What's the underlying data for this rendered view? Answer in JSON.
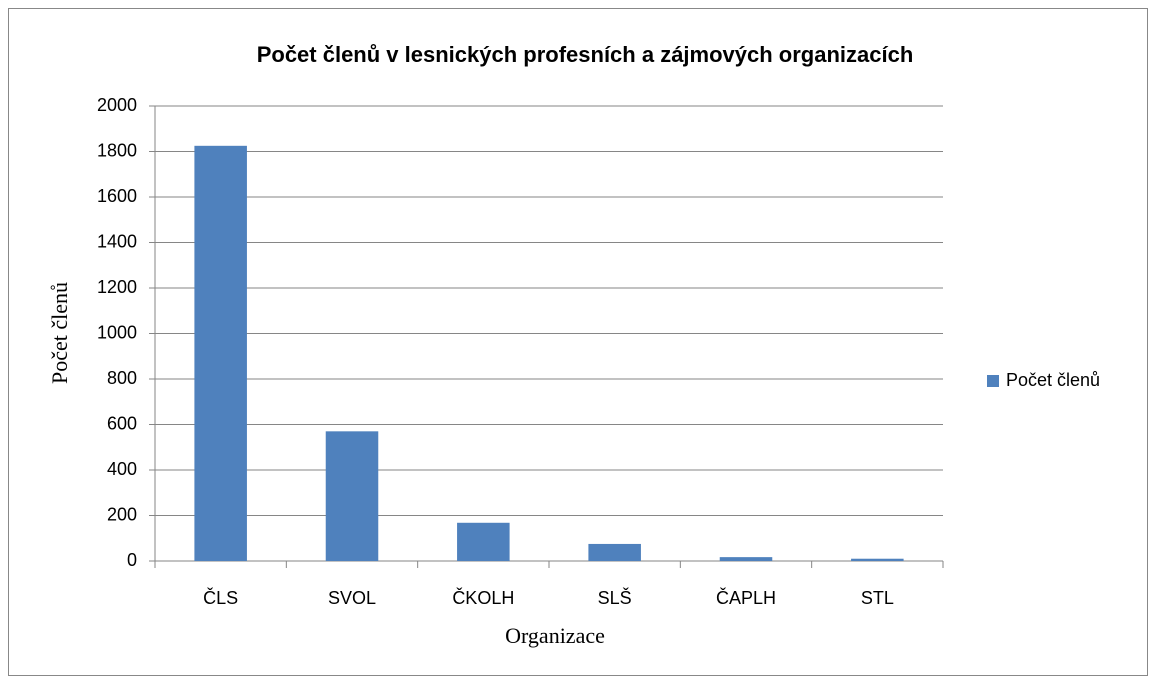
{
  "chart_data": {
    "type": "bar",
    "title": "Počet členů v lesnických profesních a zájmových organizacích",
    "x_label": "Organizace",
    "y_label": "Počet členů",
    "categories": [
      "ČLS",
      "SVOL",
      "ČKOLH",
      "SLŠ",
      "ČAPLH",
      "STL"
    ],
    "series": [
      {
        "name": "Počet členů",
        "color": "#4f81bd",
        "values": [
          1825,
          570,
          168,
          75,
          17,
          10
        ]
      }
    ],
    "ylim": [
      0,
      2000
    ],
    "yticks": [
      0,
      200,
      400,
      600,
      800,
      1000,
      1200,
      1400,
      1600,
      1800,
      2000
    ],
    "grid": true,
    "legend": "right"
  }
}
